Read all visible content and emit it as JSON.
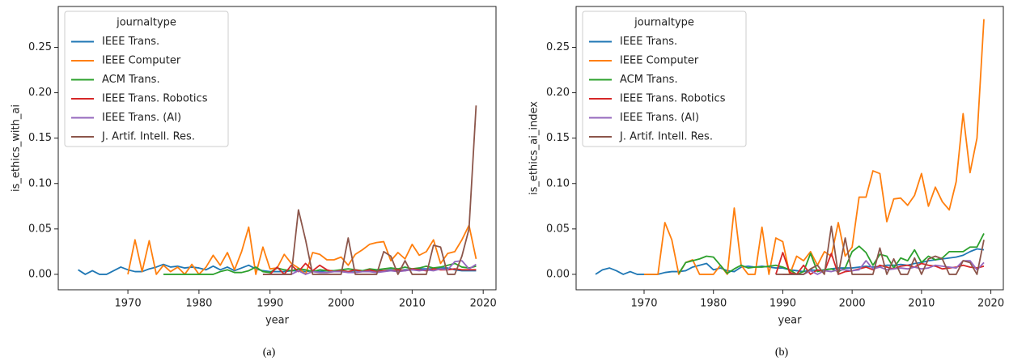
{
  "chart_data": [
    {
      "type": "line",
      "xlabel": "year",
      "ylabel": "is_ethics_with_ai",
      "legend_title": "journaltype",
      "legend": "upper left",
      "caption": "(a)",
      "x": [
        1963,
        1964,
        1965,
        1966,
        1967,
        1968,
        1969,
        1970,
        1971,
        1972,
        1973,
        1974,
        1975,
        1976,
        1977,
        1978,
        1979,
        1980,
        1981,
        1982,
        1983,
        1984,
        1985,
        1986,
        1987,
        1988,
        1989,
        1990,
        1991,
        1992,
        1993,
        1994,
        1995,
        1996,
        1997,
        1998,
        1999,
        2000,
        2001,
        2002,
        2003,
        2004,
        2005,
        2006,
        2007,
        2008,
        2009,
        2010,
        2011,
        2012,
        2013,
        2014,
        2015,
        2016,
        2017,
        2018,
        2019
      ],
      "xlim": [
        1960.2,
        2021.8
      ],
      "xticks": [
        1970,
        1980,
        1990,
        2000,
        2010,
        2020
      ],
      "ylim": [
        -0.017,
        0.295
      ],
      "yticks": [
        {
          "value": 0,
          "label": "0.00"
        },
        {
          "value": 0.05,
          "label": "0.05"
        },
        {
          "value": 0.1,
          "label": "0.10"
        },
        {
          "value": 0.15,
          "label": "0.15"
        },
        {
          "value": 0.2,
          "label": "0.20"
        },
        {
          "value": 0.25,
          "label": "0.25"
        }
      ],
      "series": [
        {
          "name": "IEEE Trans.",
          "color": "#1f77b4",
          "values": [
            0.005,
            0,
            0.004,
            0,
            0,
            0.004,
            0.008,
            0.005,
            0.003,
            0.003,
            0.006,
            0.008,
            0.011,
            0.008,
            0.009,
            0.007,
            0.008,
            0.007,
            0.005,
            0.009,
            0.005,
            0.008,
            0.004,
            0.007,
            0.01,
            0.006,
            0.004,
            0.003,
            0.003,
            0.003,
            0.004,
            0.004,
            0.003,
            0.004,
            0.003,
            0.004,
            0.004,
            0.004,
            0.003,
            0.004,
            0.004,
            0.004,
            0.004,
            0.004,
            0.005,
            0.004,
            0.005,
            0.005,
            0.006,
            0.006,
            0.006,
            0.007,
            0.007,
            0.005,
            0.004,
            0.004,
            0.004
          ]
        },
        {
          "name": "IEEE Computer",
          "color": "#ff7f0e",
          "values": [
            null,
            null,
            null,
            null,
            null,
            null,
            null,
            0,
            0.038,
            0.003,
            0.037,
            0,
            0.01,
            0.003,
            0.008,
            0,
            0.011,
            0,
            0.008,
            0.021,
            0.01,
            0.024,
            0.005,
            0.025,
            0.052,
            0,
            0.03,
            0.006,
            0.007,
            0.022,
            0.012,
            0.007,
            0,
            0.024,
            0.022,
            0.016,
            0.016,
            0.019,
            0.01,
            0.022,
            0.027,
            0.033,
            0.035,
            0.036,
            0.015,
            0.024,
            0.017,
            0.033,
            0.021,
            0.025,
            0.038,
            0.012,
            0.023,
            0.025,
            0.038,
            0.054,
            0.017
          ]
        },
        {
          "name": "ACM Trans.",
          "color": "#2ca02c",
          "values": [
            null,
            null,
            null,
            null,
            null,
            null,
            null,
            null,
            null,
            null,
            null,
            null,
            0,
            0,
            0,
            0,
            0,
            0,
            0,
            0,
            0.003,
            0.005,
            0.002,
            0.002,
            0.004,
            0.008,
            0.003,
            0.002,
            0.007,
            0.005,
            0.004,
            0.006,
            0.005,
            0.003,
            0.005,
            0.004,
            0.004,
            0.005,
            0.006,
            0.005,
            0.004,
            0.006,
            0.005,
            0.006,
            0.007,
            0.006,
            0.008,
            0.006,
            0.007,
            0.009,
            0.007,
            0.008,
            0.01,
            0.012,
            0.008,
            0.007,
            0.009
          ]
        },
        {
          "name": "IEEE Trans. Robotics",
          "color": "#d62728",
          "values": [
            null,
            null,
            null,
            null,
            null,
            null,
            null,
            null,
            null,
            null,
            null,
            null,
            null,
            null,
            null,
            null,
            null,
            null,
            null,
            null,
            null,
            null,
            null,
            null,
            null,
            null,
            0,
            0,
            0.008,
            0,
            0.01,
            0.003,
            0.012,
            0.004,
            0.01,
            0.005,
            0.003,
            0.004,
            0.003,
            0.005,
            0.003,
            0.005,
            0.003,
            0.004,
            0.004,
            0.005,
            0.004,
            0.006,
            0.005,
            0.004,
            0.006,
            0.005,
            0.005,
            0.006,
            0.005,
            0.005,
            0.005
          ]
        },
        {
          "name": "IEEE Trans. (AI)",
          "color": "#9467bd",
          "values": [
            null,
            null,
            null,
            null,
            null,
            null,
            null,
            null,
            null,
            null,
            null,
            null,
            null,
            null,
            null,
            null,
            null,
            null,
            null,
            null,
            null,
            null,
            null,
            null,
            null,
            null,
            null,
            0,
            0,
            0,
            0,
            0.004,
            0,
            0.003,
            0.002,
            0.002,
            0.003,
            0.003,
            0.002,
            0.002,
            0.003,
            0.003,
            0.002,
            0.003,
            0.004,
            0.003,
            0.004,
            0.005,
            0.004,
            0.005,
            0.004,
            0.006,
            0.005,
            0.014,
            0.015,
            0.006,
            0.011
          ]
        },
        {
          "name": "J. Artif. Intell. Res.",
          "color": "#8c564b",
          "values": [
            null,
            null,
            null,
            null,
            null,
            null,
            null,
            null,
            null,
            null,
            null,
            null,
            null,
            null,
            null,
            null,
            null,
            null,
            null,
            null,
            null,
            null,
            null,
            null,
            null,
            null,
            0,
            0,
            0,
            0,
            0,
            0.071,
            0.038,
            0,
            0,
            0,
            0,
            0,
            0.04,
            0,
            0,
            0,
            0,
            0.025,
            0.02,
            0,
            0.015,
            0,
            0,
            0,
            0.032,
            0.03,
            0,
            0,
            0.02,
            0.05,
            0.186
          ]
        }
      ]
    },
    {
      "type": "line",
      "xlabel": "year",
      "ylabel": "is_ethics_ai_index",
      "legend_title": "journaltype",
      "legend": "upper left",
      "caption": "(b)",
      "x": [
        1963,
        1964,
        1965,
        1966,
        1967,
        1968,
        1969,
        1970,
        1971,
        1972,
        1973,
        1974,
        1975,
        1976,
        1977,
        1978,
        1979,
        1980,
        1981,
        1982,
        1983,
        1984,
        1985,
        1986,
        1987,
        1988,
        1989,
        1990,
        1991,
        1992,
        1993,
        1994,
        1995,
        1996,
        1997,
        1998,
        1999,
        2000,
        2001,
        2002,
        2003,
        2004,
        2005,
        2006,
        2007,
        2008,
        2009,
        2010,
        2011,
        2012,
        2013,
        2014,
        2015,
        2016,
        2017,
        2018,
        2019
      ],
      "xlim": [
        1960.2,
        2021.8
      ],
      "xticks": [
        1970,
        1980,
        1990,
        2000,
        2010,
        2020
      ],
      "ylim": [
        -0.017,
        0.295
      ],
      "yticks": [
        {
          "value": 0,
          "label": "0.00"
        },
        {
          "value": 0.05,
          "label": "0.05"
        },
        {
          "value": 0.1,
          "label": "0.10"
        },
        {
          "value": 0.15,
          "label": "0.15"
        },
        {
          "value": 0.2,
          "label": "0.20"
        },
        {
          "value": 0.25,
          "label": "0.25"
        }
      ],
      "series": [
        {
          "name": "IEEE Trans.",
          "color": "#1f77b4",
          "values": [
            0,
            0.005,
            0.007,
            0.004,
            0,
            0.003,
            0,
            0,
            0,
            0,
            0.002,
            0.003,
            0.003,
            0.004,
            0.008,
            0.01,
            0.012,
            0.005,
            0.007,
            0.004,
            0.003,
            0.008,
            0.009,
            0.008,
            0.009,
            0.008,
            0.007,
            0.007,
            0.005,
            0.004,
            0.003,
            0.005,
            0.004,
            0.005,
            0.006,
            0.007,
            0.007,
            0.007,
            0.008,
            0.009,
            0.008,
            0.009,
            0.01,
            0.01,
            0.011,
            0.01,
            0.012,
            0.013,
            0.015,
            0.016,
            0.017,
            0.018,
            0.019,
            0.021,
            0.025,
            0.028,
            0.027
          ]
        },
        {
          "name": "IEEE Computer",
          "color": "#ff7f0e",
          "values": [
            null,
            null,
            null,
            null,
            null,
            null,
            null,
            0,
            0,
            0,
            0.057,
            0.038,
            0,
            0.013,
            0.016,
            0,
            0,
            0,
            0.01,
            0,
            0.073,
            0.01,
            0,
            0,
            0.052,
            0,
            0.04,
            0.036,
            0,
            0.02,
            0.015,
            0.025,
            0.01,
            0.025,
            0.02,
            0.057,
            0.02,
            0.03,
            0.085,
            0.085,
            0.114,
            0.111,
            0.058,
            0.083,
            0.084,
            0.076,
            0.087,
            0.111,
            0.075,
            0.096,
            0.08,
            0.071,
            0.102,
            0.177,
            0.112,
            0.15,
            0.281
          ]
        },
        {
          "name": "ACM Trans.",
          "color": "#2ca02c",
          "values": [
            null,
            null,
            null,
            null,
            null,
            null,
            null,
            null,
            null,
            null,
            null,
            null,
            0.001,
            0.013,
            0.015,
            0.017,
            0.02,
            0.019,
            0.01,
            0.001,
            0.006,
            0.01,
            0.007,
            0.008,
            0.008,
            0.009,
            0.01,
            0.008,
            0.005,
            0,
            0.003,
            0.023,
            0.003,
            0.005,
            0.006,
            0.003,
            0.007,
            0.025,
            0.031,
            0.024,
            0.01,
            0.022,
            0.02,
            0.007,
            0.018,
            0.015,
            0.027,
            0.013,
            0.02,
            0.016,
            0.018,
            0.025,
            0.025,
            0.025,
            0.03,
            0.03,
            0.045
          ]
        },
        {
          "name": "IEEE Trans. Robotics",
          "color": "#d62728",
          "values": [
            null,
            null,
            null,
            null,
            null,
            null,
            null,
            null,
            null,
            null,
            null,
            null,
            null,
            null,
            null,
            null,
            null,
            null,
            null,
            null,
            null,
            null,
            null,
            null,
            null,
            null,
            0,
            0.024,
            0.002,
            0,
            0.01,
            0,
            0.005,
            0.003,
            0.023,
            0,
            0.003,
            0.004,
            0.006,
            0.008,
            0.005,
            0.01,
            0.008,
            0.006,
            0.009,
            0.01,
            0.008,
            0.012,
            0.01,
            0.009,
            0.006,
            0.007,
            0.008,
            0.01,
            0.008,
            0.007,
            0.009
          ]
        },
        {
          "name": "IEEE Trans. (AI)",
          "color": "#9467bd",
          "values": [
            null,
            null,
            null,
            null,
            null,
            null,
            null,
            null,
            null,
            null,
            null,
            null,
            null,
            null,
            null,
            null,
            null,
            null,
            null,
            null,
            null,
            null,
            null,
            null,
            null,
            null,
            null,
            0,
            0,
            0,
            0,
            0.004,
            0,
            0.004,
            0.003,
            0.005,
            0.005,
            0.004,
            0.005,
            0.015,
            0.006,
            0.008,
            0.005,
            0.006,
            0.007,
            0.006,
            0.008,
            0.006,
            0.007,
            0.01,
            0.009,
            0.008,
            0.007,
            0.015,
            0.015,
            0.005,
            0.013
          ]
        },
        {
          "name": "J. Artif. Intell. Res.",
          "color": "#8c564b",
          "values": [
            null,
            null,
            null,
            null,
            null,
            null,
            null,
            null,
            null,
            null,
            null,
            null,
            null,
            null,
            null,
            null,
            null,
            null,
            null,
            null,
            null,
            null,
            null,
            null,
            null,
            null,
            0,
            0,
            0,
            0,
            0,
            0.006,
            0.01,
            0,
            0.053,
            0,
            0.04,
            0,
            0,
            0,
            0,
            0.029,
            0,
            0.017,
            0,
            0,
            0.018,
            0,
            0.017,
            0.02,
            0.017,
            0,
            0,
            0.015,
            0.013,
            0,
            0.038
          ]
        }
      ]
    }
  ]
}
